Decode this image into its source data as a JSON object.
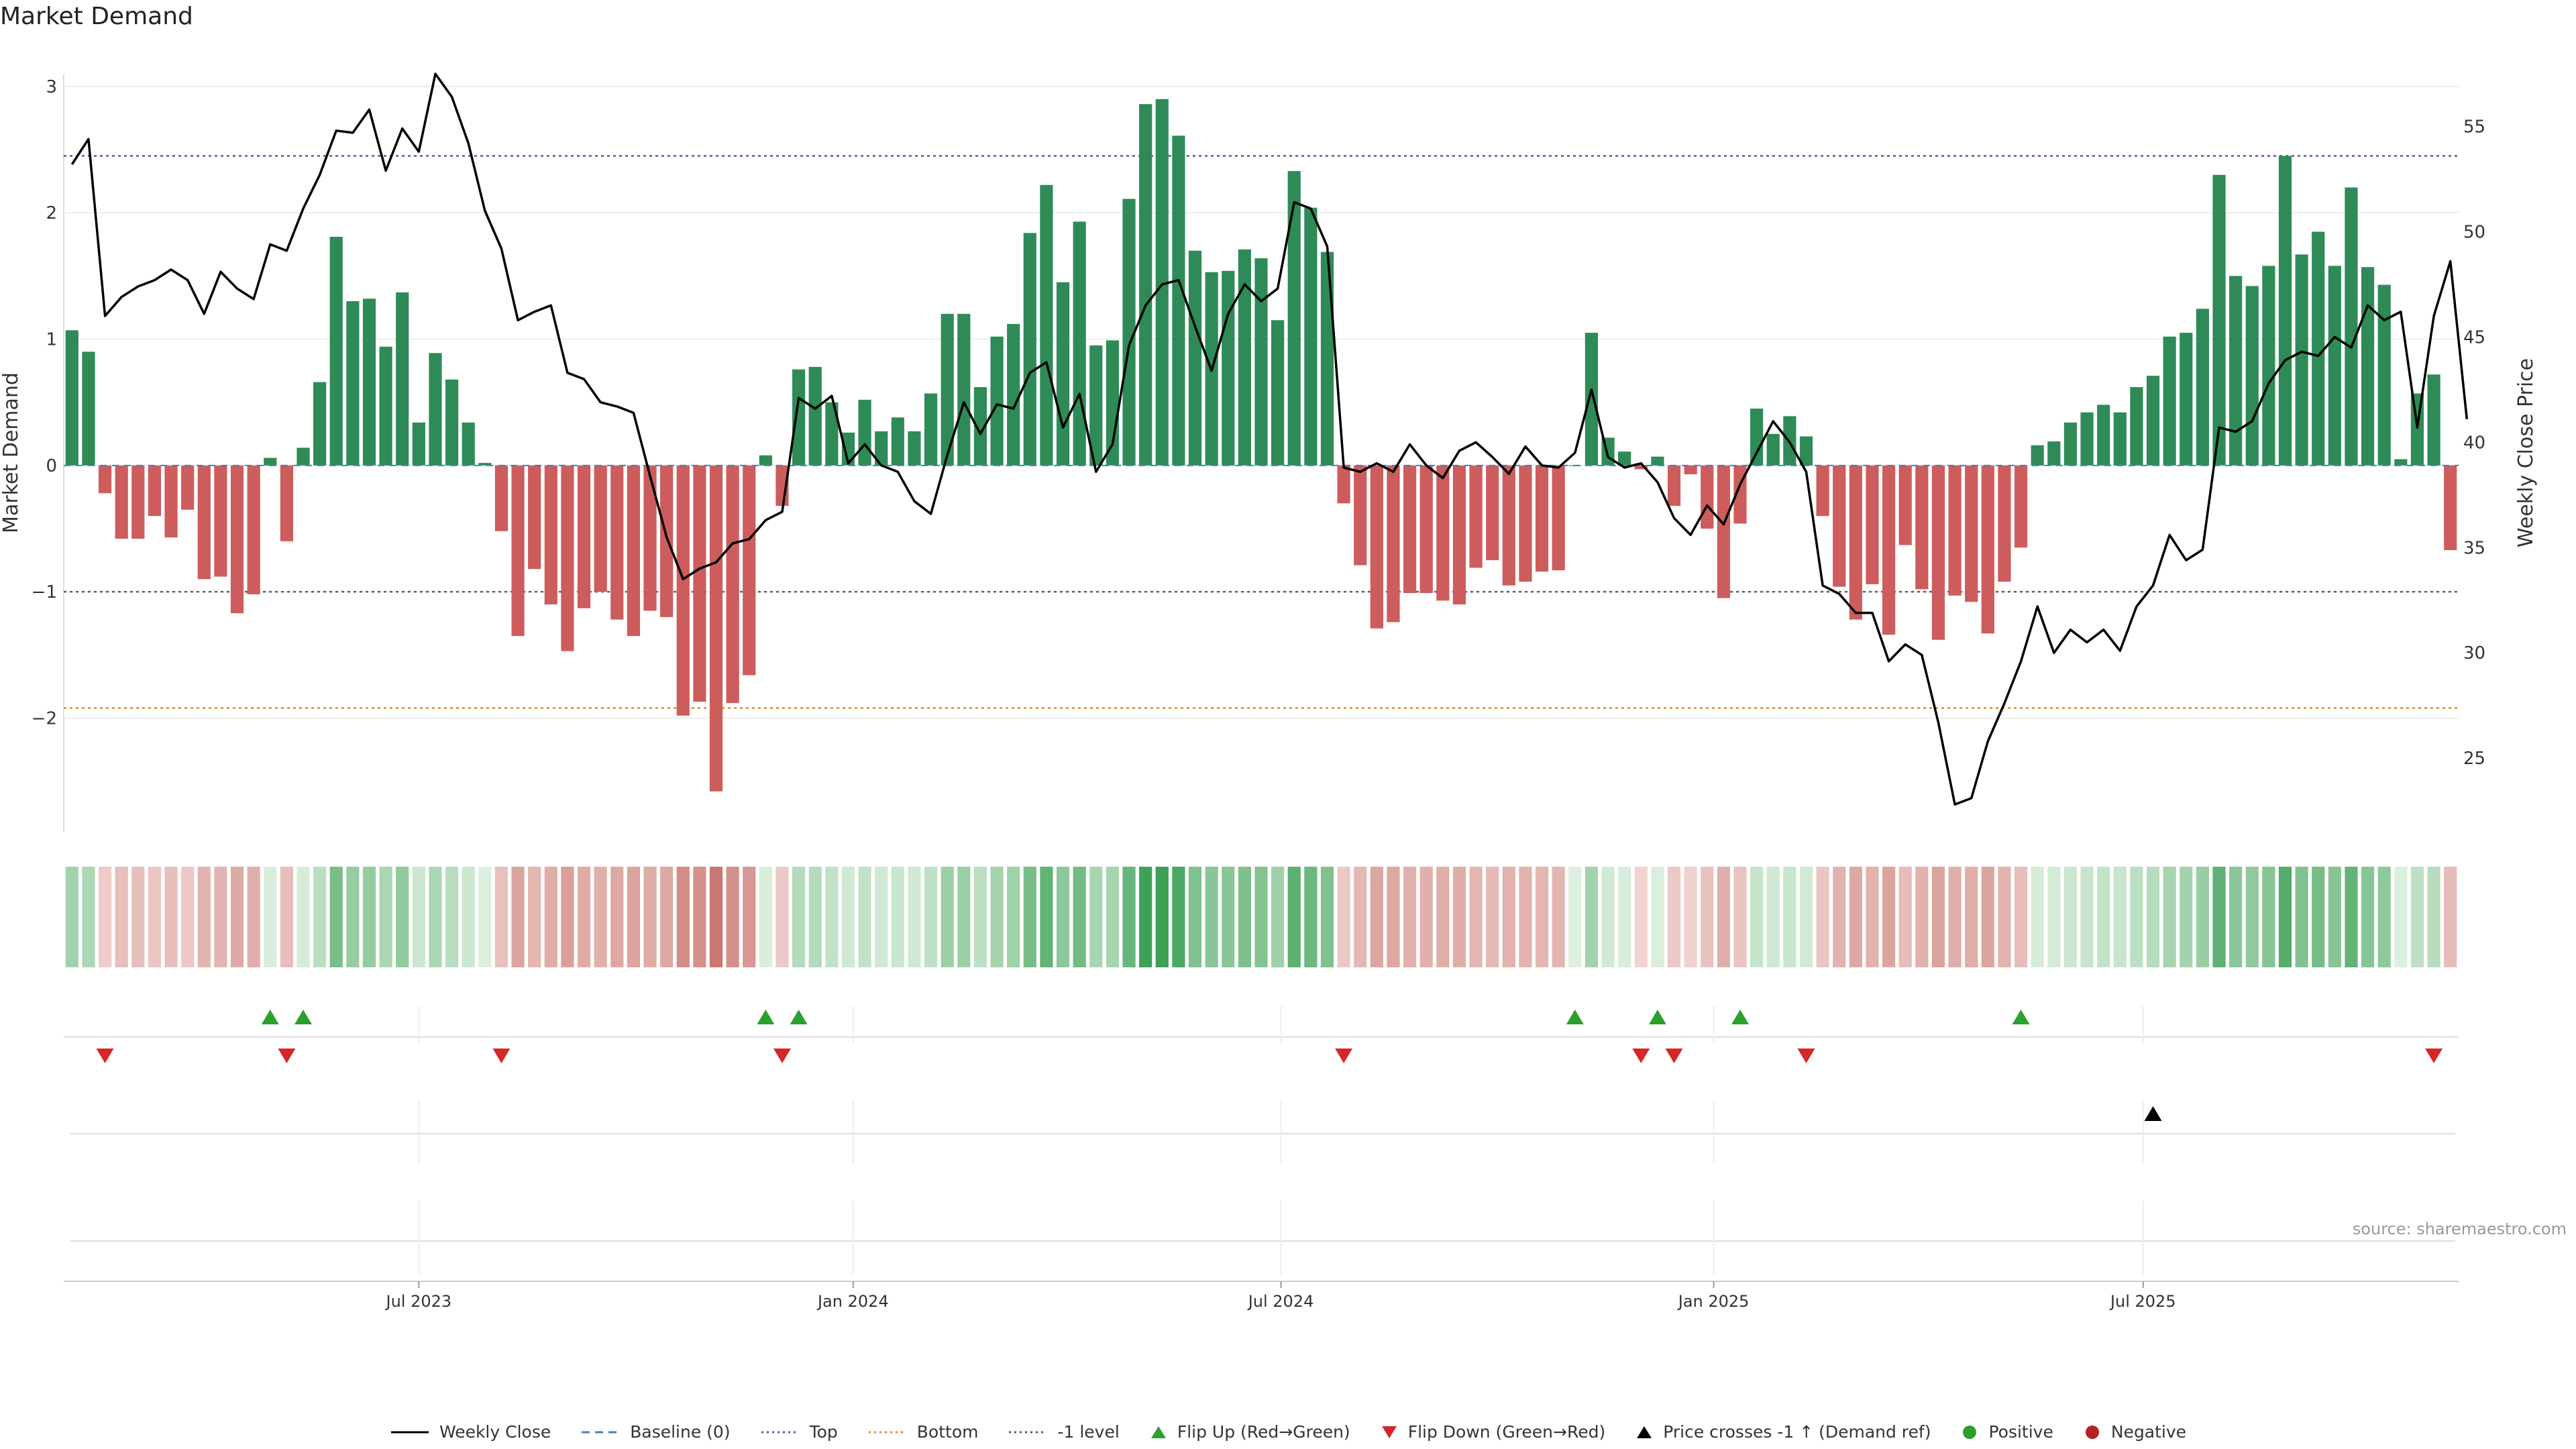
{
  "chart_data": {
    "type": "bar",
    "title": "Market Demand",
    "ylabel_left": "Market Demand",
    "ylabel_right": "Weekly Close Price",
    "ylim_left": [
      -2.9,
      3.1
    ],
    "ylim_right": [
      21.5,
      57.5
    ],
    "left_ticks": [
      {
        "v": 3,
        "label": "3"
      },
      {
        "v": 2,
        "label": "2"
      },
      {
        "v": 1,
        "label": "1"
      },
      {
        "v": 0,
        "label": "0"
      },
      {
        "v": -1,
        "label": "−1"
      },
      {
        "v": -2,
        "label": "−2"
      }
    ],
    "right_ticks": [
      {
        "v": 55,
        "label": "55"
      },
      {
        "v": 50,
        "label": "50"
      },
      {
        "v": 45,
        "label": "45"
      },
      {
        "v": 40,
        "label": "40"
      },
      {
        "v": 35,
        "label": "35"
      },
      {
        "v": 30,
        "label": "30"
      },
      {
        "v": 25,
        "label": "25"
      }
    ],
    "x_ticks": [
      {
        "i": 21.5,
        "label": "Jul 2023"
      },
      {
        "i": 47.8,
        "label": "Jan 2024"
      },
      {
        "i": 73.7,
        "label": "Jul 2024"
      },
      {
        "i": 99.9,
        "label": "Jan 2025"
      },
      {
        "i": 125.9,
        "label": "Jul 2025"
      }
    ],
    "reference_levels": {
      "top": 2.45,
      "bottom": -1.92,
      "minus_one": -1.0,
      "baseline": 0
    },
    "demand": [
      1.07,
      0.9,
      -0.22,
      -0.58,
      -0.58,
      -0.4,
      -0.57,
      -0.35,
      -0.9,
      -0.88,
      -1.17,
      -1.02,
      0.06,
      -0.6,
      0.14,
      0.66,
      1.81,
      1.3,
      1.32,
      0.94,
      1.37,
      0.34,
      0.89,
      0.68,
      0.34,
      0.02,
      -0.52,
      -1.35,
      -0.82,
      -1.1,
      -1.47,
      -1.13,
      -1.0,
      -1.22,
      -1.35,
      -1.15,
      -1.2,
      -1.98,
      -1.87,
      -2.58,
      -1.88,
      -1.66,
      0.08,
      -0.32,
      0.76,
      0.78,
      0.5,
      0.26,
      0.52,
      0.27,
      0.38,
      0.27,
      0.57,
      1.2,
      1.2,
      0.62,
      1.02,
      1.12,
      1.84,
      2.22,
      1.45,
      1.93,
      0.95,
      0.99,
      2.11,
      2.86,
      2.9,
      2.61,
      1.7,
      1.53,
      1.54,
      1.71,
      1.64,
      1.15,
      2.33,
      2.04,
      1.69,
      -0.3,
      -0.79,
      -1.29,
      -1.24,
      -1.01,
      -1.01,
      -1.07,
      -1.1,
      -0.81,
      -0.75,
      -0.95,
      -0.92,
      -0.84,
      -0.83,
      0.0,
      1.05,
      0.22,
      0.11,
      -0.03,
      0.07,
      -0.32,
      -0.07,
      -0.5,
      -1.05,
      -0.46,
      0.45,
      0.25,
      0.39,
      0.23,
      -0.4,
      -0.96,
      -1.22,
      -0.94,
      -1.34,
      -0.63,
      -0.98,
      -1.38,
      -1.03,
      -1.08,
      -1.33,
      -0.92,
      -0.65,
      0.16,
      0.19,
      0.34,
      0.42,
      0.48,
      0.42,
      0.62,
      0.71,
      1.02,
      1.05,
      1.24,
      2.3,
      1.5,
      1.42,
      1.58,
      2.45,
      1.67,
      1.85,
      1.58,
      2.2,
      1.57,
      1.43,
      0.05,
      0.57,
      0.72,
      -0.67
    ],
    "weekly_close": [
      53.2,
      54.4,
      46.0,
      46.9,
      47.4,
      47.7,
      48.2,
      47.7,
      46.1,
      48.1,
      47.3,
      46.8,
      49.4,
      49.1,
      51.1,
      52.7,
      54.8,
      54.7,
      55.8,
      52.9,
      54.9,
      53.8,
      57.5,
      56.4,
      54.2,
      51.0,
      49.2,
      45.8,
      46.2,
      46.5,
      43.3,
      43.0,
      41.9,
      41.7,
      41.4,
      38.4,
      35.5,
      33.5,
      34.0,
      34.3,
      35.2,
      35.4,
      36.3,
      36.7,
      42.1,
      41.6,
      42.2,
      39.0,
      39.9,
      38.9,
      38.6,
      37.2,
      36.6,
      39.4,
      41.9,
      40.4,
      41.8,
      41.6,
      43.3,
      43.8,
      40.7,
      42.3,
      38.6,
      39.9,
      44.6,
      46.5,
      47.5,
      47.7,
      45.5,
      43.4,
      46.1,
      47.5,
      46.7,
      47.3,
      51.4,
      51.1,
      49.3,
      38.8,
      38.6,
      39.0,
      38.6,
      39.9,
      38.9,
      38.3,
      39.6,
      40.0,
      39.3,
      38.5,
      39.8,
      38.9,
      38.8,
      39.5,
      42.5,
      39.3,
      38.8,
      39.0,
      38.1,
      36.4,
      35.6,
      37.0,
      36.1,
      38.0,
      39.5,
      41.0,
      40.0,
      38.6,
      33.2,
      32.8,
      31.9,
      31.9,
      29.6,
      30.4,
      29.9,
      26.7,
      22.8,
      23.1,
      25.8,
      27.6,
      29.6,
      32.2,
      30.0,
      31.1,
      30.5,
      31.1,
      30.1,
      32.2,
      33.2,
      35.6,
      34.4,
      34.9,
      40.7,
      40.5,
      41.0,
      42.8,
      43.9,
      44.3,
      44.1,
      45.0,
      44.5,
      46.5,
      45.8,
      46.2,
      40.7,
      46.0,
      48.6,
      41.1
    ],
    "flip_up": [
      12,
      14,
      42,
      44,
      91,
      96,
      101,
      118
    ],
    "flip_down": [
      2,
      13,
      26,
      43,
      77,
      95,
      97,
      105,
      143
    ],
    "price_cross": [
      126
    ],
    "source": "source: sharemaestro.com"
  },
  "legend": [
    {
      "label": "Weekly Close",
      "kind": "line",
      "color": "#000000"
    },
    {
      "label": "Baseline (0)",
      "kind": "dash",
      "color": "#4a7fbf"
    },
    {
      "label": "Top",
      "kind": "dot",
      "color": "#5a5a9a"
    },
    {
      "label": "Bottom",
      "kind": "dot",
      "color": "#e08a1e"
    },
    {
      "label": "-1 level",
      "kind": "dot",
      "color": "#5a5a7a"
    },
    {
      "label": "Flip Up (Red→Green)",
      "kind": "tri-up",
      "color": "#2ca02c"
    },
    {
      "label": "Flip Down (Green→Red)",
      "kind": "tri-down",
      "color": "#d62728"
    },
    {
      "label": "Price crosses -1 ↑ (Demand ref)",
      "kind": "tri-up",
      "color": "#000000"
    },
    {
      "label": "Positive",
      "kind": "circle",
      "color": "#2ca02c"
    },
    {
      "label": "Negative",
      "kind": "circle",
      "color": "#b22222"
    }
  ],
  "colors": {
    "positive": "#2e8b57",
    "negative": "#cd5c5c",
    "line": "#000000"
  }
}
